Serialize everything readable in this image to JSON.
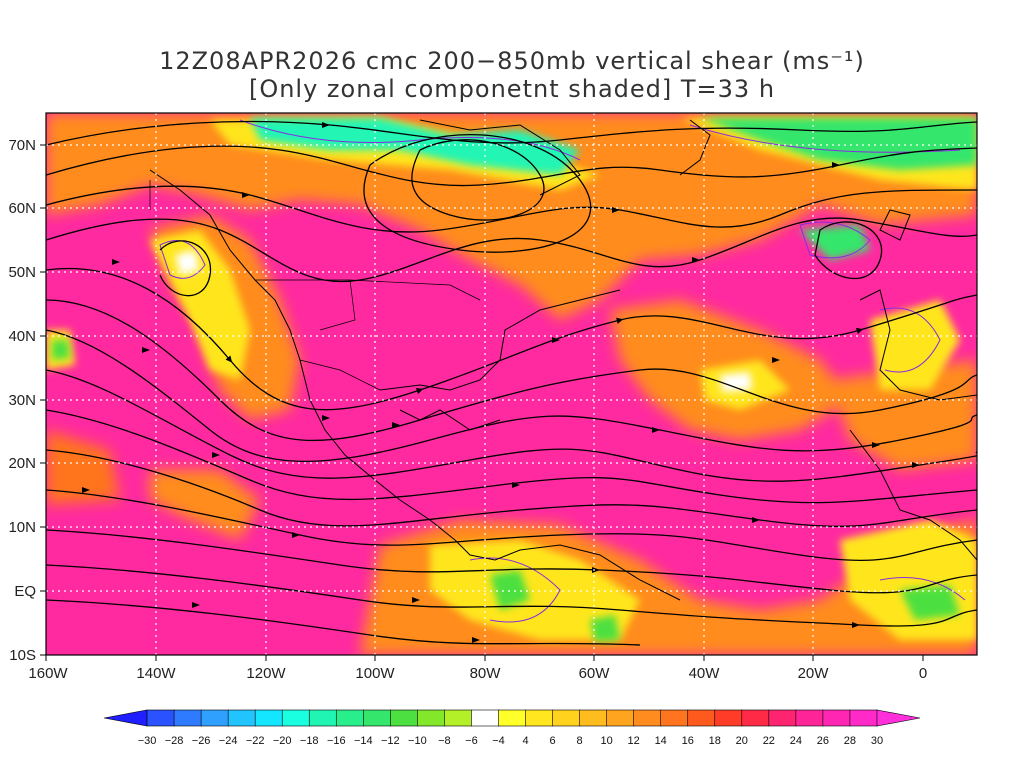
{
  "title": {
    "line1": "12Z08APR2026 cmc 200−850mb vertical shear (ms⁻¹)",
    "line2": "[Only zonal componetnt shaded] T=33 h"
  },
  "axes": {
    "lat_labels": [
      "70N",
      "60N",
      "50N",
      "40N",
      "30N",
      "20N",
      "10N",
      "EQ",
      "10S"
    ],
    "lon_labels": [
      "160W",
      "140W",
      "120W",
      "100W",
      "80W",
      "60W",
      "40W",
      "20W",
      "0"
    ]
  },
  "colorbar": {
    "labels": [
      "−30",
      "−28",
      "−26",
      "−24",
      "−22",
      "−20",
      "−18",
      "−16",
      "−14",
      "−12",
      "−10",
      "−8",
      "−6",
      "−4",
      "4",
      "6",
      "8",
      "10",
      "12",
      "14",
      "16",
      "18",
      "20",
      "22",
      "24",
      "26",
      "28",
      "30"
    ],
    "colors": [
      "#1f1fff",
      "#2a52ff",
      "#2f7bff",
      "#30a0ff",
      "#22c4ff",
      "#14e6ff",
      "#19ffe0",
      "#20f5b4",
      "#28ee8c",
      "#34e66c",
      "#4ce040",
      "#84e82a",
      "#b4f028",
      "#ffffff",
      "#ffff2a",
      "#ffe61e",
      "#ffd21e",
      "#ffbc1e",
      "#ffa41e",
      "#ff8c1e",
      "#ff741e",
      "#ff5a1e",
      "#ff3c28",
      "#ff2a46",
      "#ff2470",
      "#ff2498",
      "#ff26b4",
      "#ff2ac8",
      "#ff30dc"
    ]
  },
  "legend_colors": {
    "negative_shear": "#20f5b4",
    "weak_shear": "#ffe61e",
    "moderate_shear": "#ff8c1e",
    "strong_shear": "#ff2aa0",
    "streamline": "#000000",
    "contour": "#8a2be2"
  }
}
